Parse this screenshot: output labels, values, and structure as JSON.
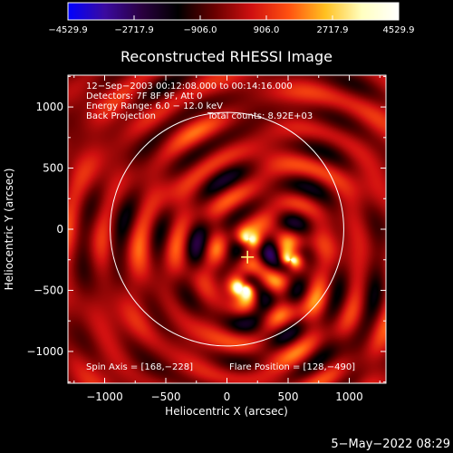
{
  "chart_data": {
    "type": "heatmap",
    "title": "Reconstructed RHESSI Image",
    "xlabel": "Heliocentric X (arcsec)",
    "ylabel": "Heliocentric Y (arcsec)",
    "xlim": [
      -1300,
      1300
    ],
    "ylim": [
      -1260,
      1260
    ],
    "x_ticks": [
      -1000,
      -500,
      0,
      500,
      1000
    ],
    "y_ticks": [
      -1000,
      -500,
      0,
      500,
      1000
    ],
    "x_tick_labels": [
      "−1000",
      "−500",
      "0",
      "500",
      "1000"
    ],
    "y_tick_labels": [
      "−1000",
      "−500",
      "0",
      "500",
      "1000"
    ],
    "colorbar": {
      "min": -4529.9,
      "max": 4529.9,
      "ticks": [
        -4529.9,
        -2717.9,
        -906.0,
        906.0,
        2717.9,
        4529.9
      ],
      "tick_labels": [
        "−4529.9",
        "−2717.9",
        "−906.0",
        "906.0",
        "2717.9",
        "4529.9"
      ],
      "colors": [
        "#0000ff",
        "#3a0aa0",
        "#2a0040",
        "#000000",
        "#6a0000",
        "#d01010",
        "#ff5010",
        "#ffc020",
        "#ffffc0",
        "#ffffff"
      ]
    },
    "annotations": [
      "12−Sep−2003 00:12:08.000 to 00:14:16.000",
      "Detectors: 7F 8F 9F, Att 0",
      "Energy Range: 6.0 − 12.0 keV",
      "Back Projection",
      "Total counts: 8.92E+03"
    ],
    "spin_axis_text": "Spin Axis = [168,−228]",
    "flare_position_text": "Flare Position = [128,−490]",
    "solar_limb_radius": 955,
    "spin_axis": [
      168,
      -228
    ],
    "bright_sources": [
      {
        "x": 128,
        "y": -490,
        "intensity": 4529.9
      },
      {
        "x": 520,
        "y": -250,
        "intensity": 3800
      },
      {
        "x": 180,
        "y": -80,
        "intensity": 2400
      }
    ],
    "limb_color": "#ffffff",
    "cross_color": "#ffff80"
  },
  "footer_date": "5−May−2022 08:29"
}
